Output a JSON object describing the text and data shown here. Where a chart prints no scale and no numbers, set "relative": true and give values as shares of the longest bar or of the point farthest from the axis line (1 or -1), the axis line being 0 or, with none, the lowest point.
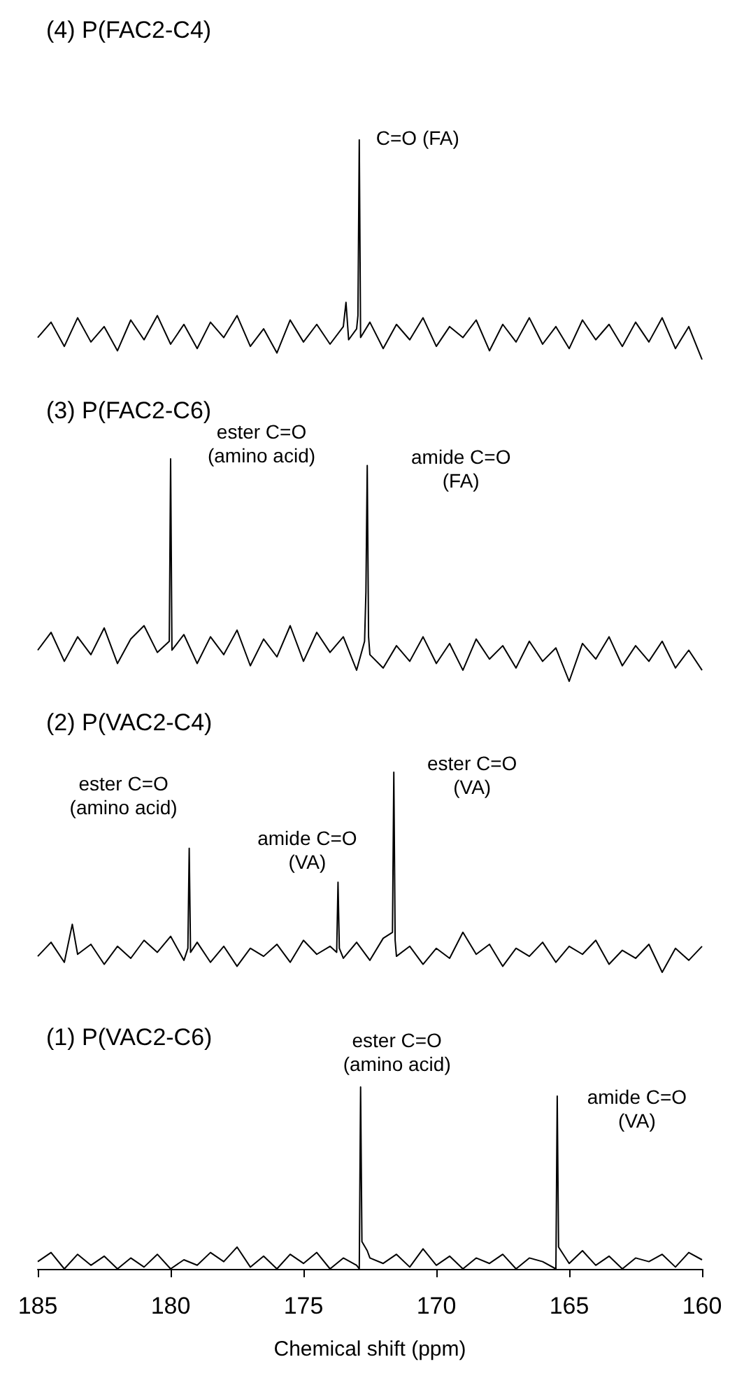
{
  "chart_data": [
    {
      "type": "line",
      "title": "(4) P(FAC2-C4)",
      "relative": true,
      "color": "#000000",
      "marker": "none",
      "xlim": [
        185,
        160
      ],
      "xticks": [
        185,
        180,
        175,
        170,
        165,
        160
      ],
      "tick_labels": false,
      "x": [
        185,
        184.5,
        184,
        183.5,
        183,
        182.5,
        182,
        181.5,
        181,
        180.5,
        180,
        179.5,
        179,
        178.5,
        178,
        177.5,
        177,
        176.5,
        176,
        175.5,
        175,
        174.5,
        174,
        173.5,
        173.4,
        173.3,
        173,
        172.95,
        172.9,
        172.85,
        172.5,
        172,
        171.5,
        171,
        170.5,
        170,
        169.5,
        169,
        168.5,
        168,
        167.5,
        167,
        166.5,
        166,
        165.5,
        165,
        164.5,
        164,
        163.5,
        163,
        162.5,
        162,
        161.5,
        161,
        160.5,
        160
      ],
      "values": [
        0.1,
        0.17,
        0.06,
        0.19,
        0.08,
        0.15,
        0.04,
        0.18,
        0.09,
        0.2,
        0.07,
        0.16,
        0.05,
        0.17,
        0.1,
        0.2,
        0.06,
        0.14,
        0.03,
        0.18,
        0.08,
        0.16,
        0.07,
        0.15,
        0.26,
        0.09,
        0.14,
        0.2,
        1,
        0.1,
        0.17,
        0.05,
        0.16,
        0.09,
        0.19,
        0.06,
        0.15,
        0.1,
        0.18,
        0.04,
        0.16,
        0.08,
        0.19,
        0.07,
        0.15,
        0.05,
        0.18,
        0.09,
        0.16,
        0.06,
        0.17,
        0.08,
        0.19,
        0.05,
        0.15,
        0
      ],
      "annotations": [
        {
          "text": "C=O (FA)",
          "x": 172.9,
          "y": 1
        }
      ]
    },
    {
      "type": "line",
      "title": "(3) P(FAC2-C6)",
      "relative": true,
      "color": "#000000",
      "marker": "none",
      "xlim": [
        185,
        160
      ],
      "xticks": [
        185,
        180,
        175,
        170,
        165,
        160
      ],
      "tick_labels": false,
      "x": [
        185,
        184.5,
        184,
        183.5,
        183,
        182.5,
        182,
        181.5,
        181,
        180.5,
        180.05,
        180,
        179.95,
        179.5,
        179,
        178.5,
        178,
        177.5,
        177,
        176.5,
        176,
        175.5,
        175,
        174.5,
        174,
        173.5,
        173,
        172.7,
        172.65,
        172.6,
        172.55,
        172.5,
        172,
        171.5,
        171,
        170.5,
        170,
        169.5,
        169,
        168.5,
        168,
        167.5,
        167,
        166.5,
        166,
        165.5,
        165,
        164.5,
        164,
        163.5,
        163,
        162.5,
        162,
        161.5,
        161,
        160.5,
        160
      ],
      "values": [
        0.14,
        0.22,
        0.09,
        0.2,
        0.12,
        0.24,
        0.08,
        0.19,
        0.25,
        0.13,
        0.18,
        1,
        0.14,
        0.21,
        0.08,
        0.2,
        0.12,
        0.23,
        0.07,
        0.19,
        0.11,
        0.25,
        0.09,
        0.22,
        0.13,
        0.2,
        0.05,
        0.18,
        0.4,
        0.97,
        0.2,
        0.12,
        0.06,
        0.16,
        0.09,
        0.2,
        0.08,
        0.17,
        0.05,
        0.19,
        0.1,
        0.16,
        0.06,
        0.18,
        0.09,
        0.15,
        0,
        0.17,
        0.1,
        0.2,
        0.07,
        0.16,
        0.09,
        0.18,
        0.06,
        0.14,
        0.05
      ],
      "annotations": [
        {
          "text": "ester C=O\n(amino acid)",
          "x": 180,
          "y": 1
        },
        {
          "text": "amide C=O\n(FA)",
          "x": 172.6,
          "y": 0.97
        }
      ]
    },
    {
      "type": "line",
      "title": "(2) P(VAC2-C4)",
      "relative": true,
      "color": "#000000",
      "marker": "none",
      "xlim": [
        185,
        160
      ],
      "xticks": [
        185,
        180,
        175,
        170,
        165,
        160
      ],
      "tick_labels": false,
      "x": [
        185,
        184.5,
        184,
        183.7,
        183.5,
        183,
        182.5,
        182,
        181.5,
        181,
        180.5,
        180,
        179.5,
        179.35,
        179.3,
        179.25,
        179,
        178.5,
        178,
        177.5,
        177,
        176.5,
        176,
        175.5,
        175,
        174.5,
        174,
        173.75,
        173.7,
        173.65,
        173.5,
        173,
        172.5,
        172,
        171.65,
        171.6,
        171.55,
        171.5,
        171,
        170.5,
        170,
        169.5,
        169,
        168.5,
        168,
        167.5,
        167,
        166.5,
        166,
        165.5,
        165,
        164.5,
        164,
        163.5,
        163,
        162.5,
        162,
        161.5,
        161,
        160.5,
        160
      ],
      "values": [
        0.08,
        0.15,
        0.05,
        0.24,
        0.09,
        0.14,
        0.04,
        0.13,
        0.07,
        0.16,
        0.1,
        0.18,
        0.06,
        0.12,
        0.62,
        0.1,
        0.15,
        0.05,
        0.13,
        0.03,
        0.12,
        0.08,
        0.14,
        0.05,
        0.16,
        0.09,
        0.13,
        0.1,
        0.45,
        0.12,
        0.07,
        0.15,
        0.06,
        0.17,
        0.2,
        1,
        0.16,
        0.08,
        0.13,
        0.04,
        0.12,
        0.07,
        0.2,
        0.09,
        0.14,
        0.03,
        0.12,
        0.08,
        0.15,
        0.05,
        0.13,
        0.09,
        0.16,
        0.04,
        0.11,
        0.07,
        0.14,
        0,
        0.12,
        0.06,
        0.13
      ],
      "annotations": [
        {
          "text": "ester C=O\n(amino acid)",
          "x": 179.3,
          "y": 0.62
        },
        {
          "text": "amide C=O\n(VA)",
          "x": 173.7,
          "y": 0.45
        },
        {
          "text": "ester C=O\n(VA)",
          "x": 171.6,
          "y": 1
        }
      ]
    },
    {
      "type": "line",
      "title": "(1) P(VAC2-C6)",
      "relative": true,
      "color": "#000000",
      "marker": "none",
      "xlim": [
        185,
        160
      ],
      "xticks": [
        185,
        180,
        175,
        170,
        165,
        160
      ],
      "tick_labels": "x",
      "xlabel": "Chemical shift (ppm)",
      "x": [
        185,
        184.5,
        184,
        183.5,
        183,
        182.5,
        182,
        181.5,
        181,
        180.5,
        180,
        179.5,
        179,
        178.5,
        178,
        177.5,
        177,
        176.5,
        176,
        175.5,
        175,
        174.5,
        174,
        173.5,
        173,
        172.9,
        172.85,
        172.8,
        172.6,
        172.5,
        172,
        171.5,
        171,
        170.5,
        170,
        169.5,
        169,
        168.5,
        168,
        167.5,
        167,
        166.5,
        166,
        165.5,
        165.45,
        165.4,
        165,
        164.5,
        164,
        163.5,
        163,
        162.5,
        162,
        161.5,
        161,
        160.5,
        160
      ],
      "values": [
        0.04,
        0.09,
        0,
        0.08,
        0.02,
        0.07,
        0,
        0.06,
        0.01,
        0.08,
        0,
        0.05,
        0.02,
        0.09,
        0.04,
        0.12,
        0.01,
        0.07,
        0,
        0.08,
        0.03,
        0.09,
        0,
        0.06,
        0.02,
        0,
        1,
        0.15,
        0.1,
        0.06,
        0.03,
        0.08,
        0.01,
        0.11,
        0.02,
        0.07,
        0,
        0.06,
        0.03,
        0.08,
        0,
        0.06,
        0.04,
        0,
        0.95,
        0.12,
        0.03,
        0.1,
        0.02,
        0.07,
        0,
        0.06,
        0.04,
        0.08,
        0.01,
        0.09,
        0.05
      ],
      "annotations": [
        {
          "text": "ester C=O\n(amino acid)",
          "x": 172.85,
          "y": 1
        },
        {
          "text": "amide C=O\n(VA)",
          "x": 165.45,
          "y": 0.95
        }
      ]
    }
  ]
}
